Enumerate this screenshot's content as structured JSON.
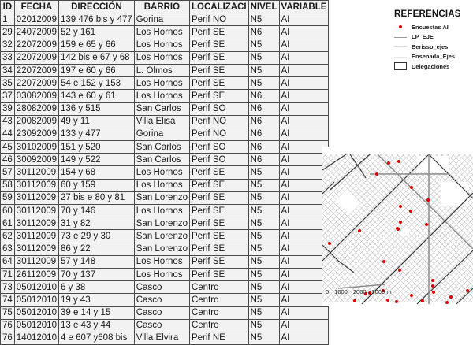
{
  "table": {
    "headers": [
      "ID",
      "FECHA",
      "DIRECCIÓN",
      "BARRIO",
      "LOCALIZACI",
      "NIVEL",
      "VARIABLE"
    ],
    "rows": [
      [
        "1",
        "02012009",
        "139 476 bis y 477",
        "Gorina",
        "Perif NO",
        "N5",
        "AI"
      ],
      [
        "29",
        "24072009",
        "52 y 161",
        "Los Hornos",
        "Perif SE",
        "N6",
        "AI"
      ],
      [
        "32",
        "22072009",
        "159 e 65 y 66",
        "Los Hornos",
        "Perif SE",
        "N5",
        "AI"
      ],
      [
        "33",
        "22072009",
        "142 bis e 67 y 68",
        "Los Hornos",
        "Perif SE",
        "N5",
        "AI"
      ],
      [
        "34",
        "22072009",
        "197 e 60 y 66",
        "L. Olmos",
        "Perif SE",
        "N5",
        "AI"
      ],
      [
        "35",
        "22072009",
        "54 e 152 y 153",
        "Los Hornos",
        "Perif SE",
        "N5",
        "AI"
      ],
      [
        "37",
        "03082009",
        "143 e 60 y 61",
        "Los Hornos",
        "Perif  SE",
        "N6",
        "AI"
      ],
      [
        "39",
        "28082009",
        "136 y 515",
        "San Carlos",
        "Perif SO",
        "N6",
        "AI"
      ],
      [
        "43",
        "20082009",
        "49 y 11",
        "Villa Elisa",
        "Perif NO",
        "N6",
        "AI"
      ],
      [
        "44",
        "23092009",
        "133 y 477",
        "Gorina",
        "Perif NO",
        "N6",
        "AI"
      ],
      [
        "45",
        "30102009",
        "151 y 520",
        "San Carlos",
        "Perif SO",
        "N6",
        "AI"
      ],
      [
        "46",
        "30092009",
        "149 y 522",
        "San Carlos",
        "Perif SO",
        "N6",
        "AI"
      ],
      [
        "57",
        "30112009",
        "154 y 68",
        "Los Hornos",
        "Perif SE",
        "N5",
        "AI"
      ],
      [
        "58",
        "30112009",
        "60 y 159",
        "Los Hornos",
        "Perif SE",
        "N5",
        "AI"
      ],
      [
        "59",
        "30112009",
        "27 bis e 80 y 81",
        "San Lorenzo",
        "Perif SE",
        "N5",
        "AI"
      ],
      [
        "60",
        "30112009",
        "70 y 146",
        "Los Hornos",
        "Perif SE",
        "N5",
        "AI"
      ],
      [
        "61",
        "30112009",
        "31 y 82",
        "San Lorenzo",
        "Perif SE",
        "N5",
        "AI"
      ],
      [
        "62",
        "30112009",
        "73 e 29 y 30",
        "San Lorenzo",
        "Perif SE",
        "N5",
        "AI"
      ],
      [
        "63",
        "30112009",
        "86 y 22",
        "San Lorenzo",
        "Perif SE",
        "N5",
        "AI"
      ],
      [
        "64",
        "30112009",
        "57 y 148",
        "Los Hornos",
        "Perif SE",
        "N5",
        "AI"
      ],
      [
        "71",
        "26112009",
        "70 y 137",
        "Los Hornos",
        "Perif SE",
        "N5",
        "AI"
      ],
      [
        "73",
        "05012010",
        "6 y 38",
        "Casco",
        "Centro",
        "N5",
        "AI"
      ],
      [
        "74",
        "05012010",
        "19 y 43",
        "Casco",
        "Centro",
        "N5",
        "AI"
      ],
      [
        "75",
        "05012010",
        "39 e 14 y 15",
        "Casco",
        "Centro",
        "N5",
        "AI"
      ],
      [
        "76",
        "05012010",
        "13 e 43 y 44",
        "Casco",
        "Centro",
        "N5",
        "AI"
      ],
      [
        "76",
        "14012010",
        "4 e 607 y608 bis",
        "Villa Elvira",
        "Perif NE",
        "N5",
        "AI"
      ]
    ]
  },
  "legend": {
    "title": "REFERENCIAS",
    "items": [
      {
        "label": "Encuestas AI",
        "symbol": "red-dot",
        "color": "#e00000"
      },
      {
        "label": "LP_EJE",
        "symbol": "line",
        "color": "#9a9a9a"
      },
      {
        "label": "Berisso_ejes",
        "symbol": "line",
        "color": "#dcdcdc"
      },
      {
        "label": "Ensenada_Ejes",
        "symbol": "line",
        "color": "#e8e8e8"
      },
      {
        "label": "Delegaciones",
        "symbol": "box",
        "color": "#333333"
      }
    ]
  },
  "map": {
    "scale_labels": [
      "0",
      "1000",
      "2000",
      "3000 m"
    ],
    "point_color": "#e00000"
  }
}
